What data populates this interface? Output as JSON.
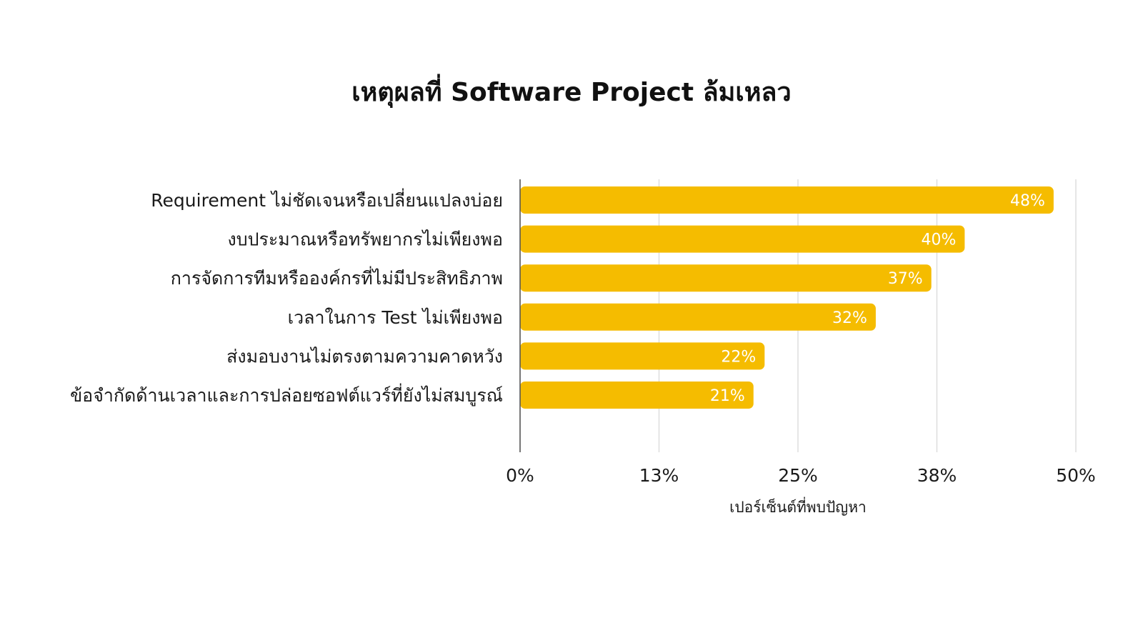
{
  "chart_data": {
    "type": "bar",
    "orientation": "horizontal",
    "title": "เหตุผลที่ Software Project ล้มเหลว",
    "xlabel": "เปอร์เซ็นต์ที่พบปัญหา",
    "ylabel": "",
    "categories": [
      "Requirement ไม่ชัดเจนหรือเปลี่ยนแปลงบ่อย",
      "งบประมาณหรือทรัพยากรไม่เพียงพอ",
      "การจัดการทีมหรือองค์กรที่ไม่มีประสิทธิภาพ",
      "เวลาในการ Test ไม่เพียงพอ",
      "ส่งมอบงานไม่ตรงตามความคาดหวัง",
      "ข้อจำกัดด้านเวลาและการปล่อยซอฟต์แวร์ที่ยังไม่สมบูรณ์"
    ],
    "values": [
      48,
      40,
      37,
      32,
      22,
      21
    ],
    "data_labels": [
      "48%",
      "40%",
      "37%",
      "32%",
      "22%",
      "21%"
    ],
    "xlim": [
      0,
      50
    ],
    "x_ticks": [
      0,
      12.5,
      25,
      37.5,
      50
    ],
    "x_tick_labels": [
      "0%",
      "13%",
      "25%",
      "38%",
      "50%"
    ],
    "grid": true,
    "legend": "none",
    "colors": {
      "bar": "#F5BC00",
      "grid": "#d6d6d6",
      "axis": "#555555",
      "bar_label": "#ffffff",
      "text": "#1a1a1a"
    }
  }
}
